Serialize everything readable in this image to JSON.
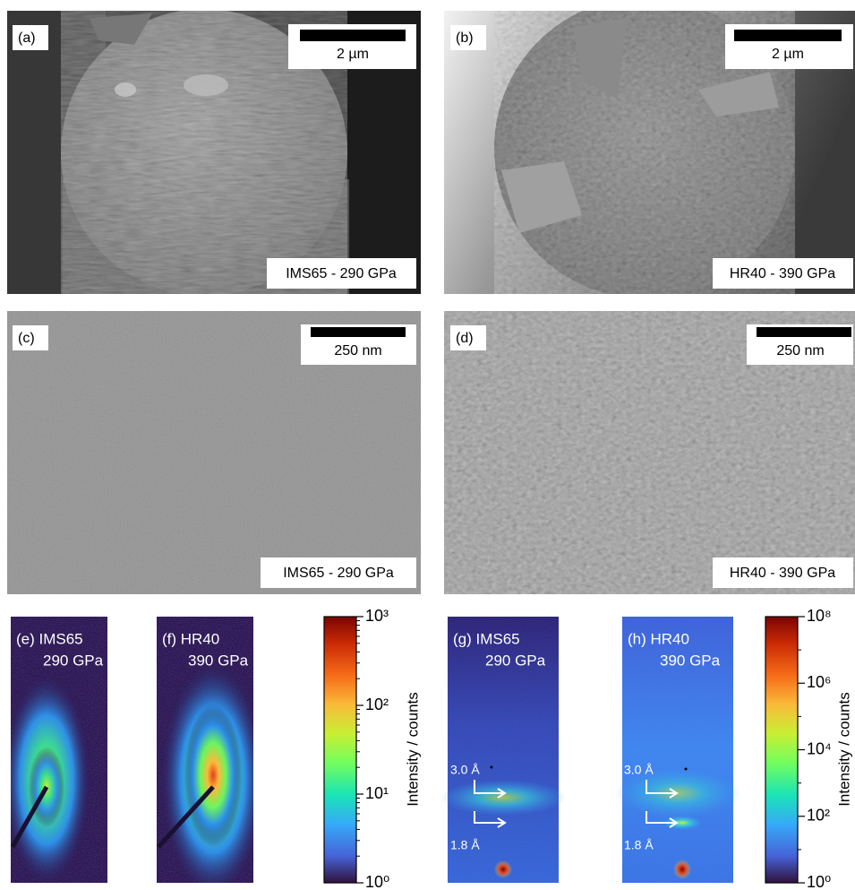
{
  "panels": [
    {
      "label": "(a)",
      "scale_bar": "2 µm",
      "sample": "IMS65 - 290 GPa"
    },
    {
      "label": "(b)",
      "scale_bar": "2 µm",
      "sample": "HR40 - 390 GPa"
    },
    {
      "label": "(c)",
      "scale_bar": "250 nm",
      "sample": "IMS65 - 290 GPa"
    },
    {
      "label": "(d)",
      "scale_bar": "250 nm",
      "sample": "HR40 - 390 GPa"
    },
    {
      "label": "(e) IMS65",
      "modulus": "290 GPa"
    },
    {
      "label": "(f) HR40",
      "modulus": "390 GPa"
    },
    {
      "label": "(g) IMS65",
      "modulus": "290 GPa",
      "reflections": [
        "3.0 Å",
        "1.8 Å"
      ]
    },
    {
      "label": "(h) HR40",
      "modulus": "390 GPa",
      "reflections": [
        "3.0 Å",
        "1.8 Å"
      ]
    }
  ],
  "colorbars": [
    {
      "title": "Intensity / counts",
      "log_scale": true,
      "range": [
        1,
        1000
      ],
      "ticks": [
        {
          "value": 1,
          "label": "10⁰"
        },
        {
          "value": 10,
          "label": "10¹"
        },
        {
          "value": 100,
          "label": "10²"
        },
        {
          "value": 1000,
          "label": "10³"
        }
      ]
    },
    {
      "title": "Intensity / counts",
      "log_scale": true,
      "range": [
        1,
        100000000
      ],
      "ticks": [
        {
          "value": 1,
          "label": "10⁰"
        },
        {
          "value": 100,
          "label": "10²"
        },
        {
          "value": 10000,
          "label": "10⁴"
        },
        {
          "value": 1000000,
          "label": "10⁶"
        },
        {
          "value": 100000000,
          "label": "10⁸"
        }
      ]
    }
  ]
}
